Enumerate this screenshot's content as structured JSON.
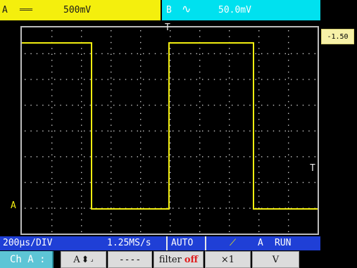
{
  "channel_a": {
    "name": "A",
    "coupling_symbol": "═══",
    "sensitivity": "500mV"
  },
  "channel_b": {
    "name": "B",
    "coupling_symbol": "∿",
    "sensitivity": "50.0mV"
  },
  "cursor_readout": "-1.50",
  "markers": {
    "trigger_top": "T",
    "trigger_level": "T",
    "channel_ref": "A"
  },
  "status": {
    "timebase": "200µs/DIV",
    "sample_rate": "1.25MS/s",
    "trigger_mode": "AUTO",
    "trigger_source": "A",
    "run_state": "RUN"
  },
  "menu": {
    "channel": "Ch A :",
    "move_label": "A",
    "coupling": "----",
    "filter_label": "filter",
    "filter_state": "off",
    "probe": "×1",
    "unit": "V"
  },
  "colors": {
    "trace": "#f2ee10",
    "channel_a": "#f4ef0d",
    "channel_b": "#00e1ef",
    "status_bar": "#1f3fd6",
    "menu_channel": "#5dc5d6"
  }
}
